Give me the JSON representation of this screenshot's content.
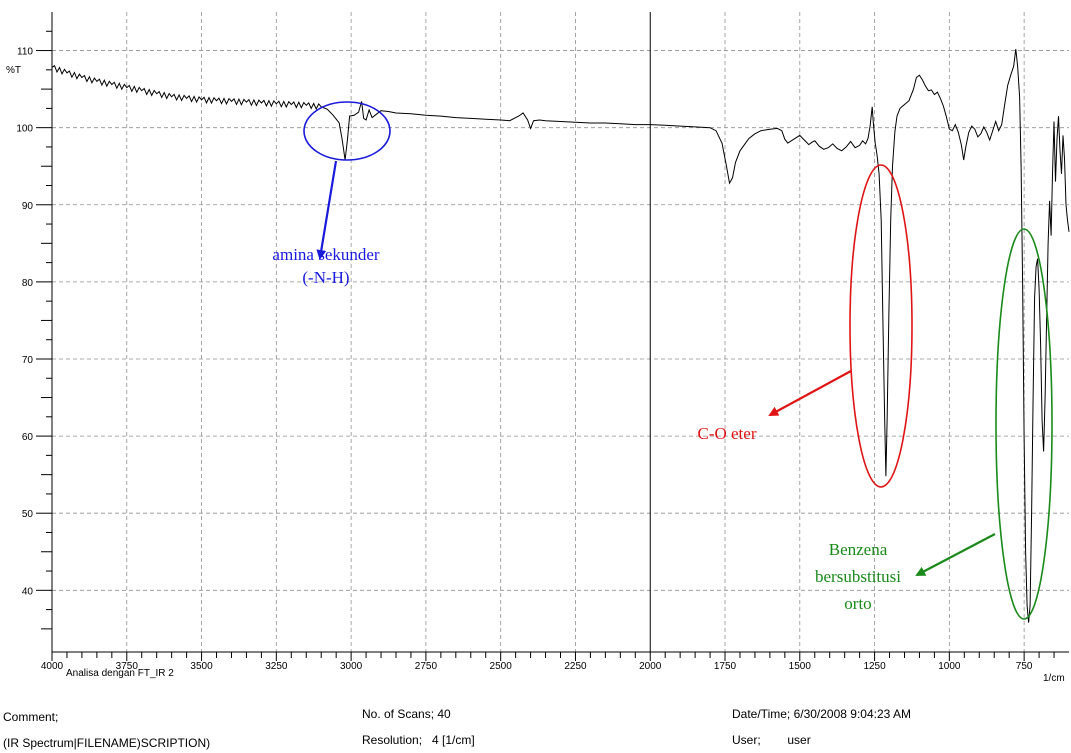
{
  "chart_data": {
    "type": "line",
    "ylabel": "%T",
    "xunit": "1/cm",
    "xlim": [
      4000,
      600
    ],
    "ylim": [
      32,
      115
    ],
    "x_ticks": [
      4000,
      3750,
      3500,
      3250,
      3000,
      2750,
      2500,
      2250,
      2000,
      1750,
      1500,
      1250,
      1000,
      750
    ],
    "y_ticks": [
      40,
      50,
      60,
      70,
      80,
      90,
      100,
      110
    ],
    "grid": true,
    "series": [
      {
        "color": "#000000",
        "points": [
          [
            4000,
            107.8
          ],
          [
            3950,
            107.1
          ],
          [
            3900,
            106.5
          ],
          [
            3850,
            106.0
          ],
          [
            3800,
            105.6
          ],
          [
            3750,
            105.2
          ],
          [
            3700,
            104.8
          ],
          [
            3650,
            104.4
          ],
          [
            3600,
            104.0
          ],
          [
            3550,
            103.8
          ],
          [
            3500,
            103.6
          ],
          [
            3450,
            103.5
          ],
          [
            3400,
            103.4
          ],
          [
            3350,
            103.3
          ],
          [
            3300,
            103.2
          ],
          [
            3250,
            103.1
          ],
          [
            3200,
            103.0
          ],
          [
            3150,
            102.9
          ],
          [
            3100,
            102.7
          ],
          [
            3080,
            102.4
          ],
          [
            3060,
            101.6
          ],
          [
            3040,
            100.6
          ],
          [
            3030,
            98.5
          ],
          [
            3020,
            95.8
          ],
          [
            3012,
            98.5
          ],
          [
            3005,
            101.5
          ],
          [
            2990,
            101.6
          ],
          [
            2975,
            102.0
          ],
          [
            2965,
            103.4
          ],
          [
            2958,
            101.2
          ],
          [
            2950,
            101.0
          ],
          [
            2940,
            102.3
          ],
          [
            2930,
            101.3
          ],
          [
            2920,
            101.6
          ],
          [
            2900,
            102.2
          ],
          [
            2875,
            102.1
          ],
          [
            2850,
            101.9
          ],
          [
            2800,
            101.8
          ],
          [
            2750,
            101.6
          ],
          [
            2700,
            101.5
          ],
          [
            2650,
            101.3
          ],
          [
            2600,
            101.2
          ],
          [
            2550,
            101.1
          ],
          [
            2500,
            101.0
          ],
          [
            2470,
            100.9
          ],
          [
            2440,
            101.5
          ],
          [
            2425,
            101.9
          ],
          [
            2410,
            101.0
          ],
          [
            2400,
            99.9
          ],
          [
            2390,
            100.9
          ],
          [
            2370,
            101.0
          ],
          [
            2350,
            100.9
          ],
          [
            2300,
            100.8
          ],
          [
            2250,
            100.7
          ],
          [
            2200,
            100.6
          ],
          [
            2150,
            100.6
          ],
          [
            2100,
            100.5
          ],
          [
            2050,
            100.4
          ],
          [
            2000,
            100.4
          ],
          [
            1950,
            100.3
          ],
          [
            1900,
            100.2
          ],
          [
            1850,
            100.1
          ],
          [
            1800,
            100.0
          ],
          [
            1780,
            99.6
          ],
          [
            1760,
            98.0
          ],
          [
            1745,
            95.0
          ],
          [
            1735,
            92.8
          ],
          [
            1725,
            93.5
          ],
          [
            1715,
            95.5
          ],
          [
            1700,
            97.0
          ],
          [
            1685,
            97.8
          ],
          [
            1670,
            98.6
          ],
          [
            1650,
            99.2
          ],
          [
            1630,
            99.6
          ],
          [
            1600,
            99.8
          ],
          [
            1575,
            99.9
          ],
          [
            1560,
            99.6
          ],
          [
            1550,
            98.5
          ],
          [
            1540,
            98.0
          ],
          [
            1520,
            98.5
          ],
          [
            1500,
            99.0
          ],
          [
            1490,
            98.6
          ],
          [
            1480,
            98.2
          ],
          [
            1470,
            97.8
          ],
          [
            1460,
            98.1
          ],
          [
            1450,
            98.3
          ],
          [
            1435,
            97.6
          ],
          [
            1420,
            97.2
          ],
          [
            1405,
            97.4
          ],
          [
            1390,
            97.9
          ],
          [
            1375,
            97.3
          ],
          [
            1360,
            97.0
          ],
          [
            1345,
            97.5
          ],
          [
            1330,
            98.2
          ],
          [
            1315,
            97.4
          ],
          [
            1300,
            97.7
          ],
          [
            1290,
            98.3
          ],
          [
            1280,
            97.9
          ],
          [
            1272,
            98.6
          ],
          [
            1265,
            100.2
          ],
          [
            1258,
            102.7
          ],
          [
            1254,
            100.5
          ],
          [
            1248,
            98.0
          ],
          [
            1242,
            96.5
          ],
          [
            1235,
            94.0
          ],
          [
            1228,
            88.0
          ],
          [
            1222,
            75.0
          ],
          [
            1216,
            62.0
          ],
          [
            1212,
            54.8
          ],
          [
            1208,
            62.0
          ],
          [
            1202,
            76.0
          ],
          [
            1196,
            88.0
          ],
          [
            1190,
            95.0
          ],
          [
            1182,
            99.5
          ],
          [
            1175,
            101.5
          ],
          [
            1165,
            102.5
          ],
          [
            1150,
            103.0
          ],
          [
            1135,
            103.5
          ],
          [
            1120,
            105.0
          ],
          [
            1110,
            106.5
          ],
          [
            1100,
            106.8
          ],
          [
            1090,
            106.2
          ],
          [
            1080,
            105.4
          ],
          [
            1070,
            104.8
          ],
          [
            1060,
            104.9
          ],
          [
            1050,
            104.3
          ],
          [
            1040,
            104.6
          ],
          [
            1030,
            103.8
          ],
          [
            1020,
            102.8
          ],
          [
            1010,
            101.4
          ],
          [
            1000,
            99.8
          ],
          [
            990,
            99.6
          ],
          [
            980,
            100.4
          ],
          [
            970,
            99.4
          ],
          [
            960,
            97.8
          ],
          [
            952,
            95.8
          ],
          [
            945,
            97.5
          ],
          [
            935,
            99.4
          ],
          [
            925,
            100.2
          ],
          [
            915,
            99.8
          ],
          [
            905,
            98.8
          ],
          [
            895,
            99.2
          ],
          [
            885,
            100.1
          ],
          [
            875,
            99.4
          ],
          [
            865,
            98.4
          ],
          [
            855,
            99.6
          ],
          [
            845,
            100.8
          ],
          [
            835,
            99.6
          ],
          [
            825,
            100.4
          ],
          [
            815,
            103.0
          ],
          [
            805,
            105.5
          ],
          [
            795,
            106.8
          ],
          [
            785,
            108.0
          ],
          [
            778,
            110.2
          ],
          [
            772,
            108.0
          ],
          [
            765,
            104.0
          ],
          [
            760,
            95.0
          ],
          [
            755,
            80.0
          ],
          [
            750,
            60.0
          ],
          [
            745,
            45.0
          ],
          [
            740,
            38.0
          ],
          [
            735,
            35.8
          ],
          [
            730,
            38.0
          ],
          [
            725,
            50.0
          ],
          [
            720,
            65.0
          ],
          [
            715,
            78.0
          ],
          [
            710,
            82.0
          ],
          [
            705,
            83.0
          ],
          [
            700,
            79.0
          ],
          [
            695,
            72.0
          ],
          [
            690,
            62.0
          ],
          [
            685,
            58.0
          ],
          [
            680,
            65.0
          ],
          [
            675,
            75.0
          ],
          [
            670,
            85.0
          ],
          [
            665,
            90.5
          ],
          [
            660,
            86.0
          ],
          [
            655,
            94.0
          ],
          [
            650,
            100.8
          ],
          [
            645,
            93.0
          ],
          [
            640,
            98.5
          ],
          [
            635,
            101.5
          ],
          [
            630,
            97.0
          ],
          [
            625,
            94.0
          ],
          [
            620,
            99.0
          ],
          [
            615,
            96.0
          ],
          [
            610,
            90.0
          ],
          [
            605,
            88.0
          ],
          [
            600,
            86.5
          ]
        ]
      }
    ]
  },
  "footer": {
    "instrument_note": "Analisa dengan FT_IR 2",
    "comment_label": "Comment;",
    "comment_value": "(IR Spectrum|FILENAME)SCRIPTION)",
    "scans": "No. of Scans; 40",
    "resolution": "Resolution;   4 [1/cm]",
    "datetime": "Date/Time; 6/30/2008 9:04:23 AM",
    "user": "User;        user"
  },
  "annotations": [
    {
      "id": "nh",
      "color": "#1a1adc",
      "lines": [
        "amina sekunder",
        "(-N-H)"
      ]
    },
    {
      "id": "co",
      "color": "#e01414",
      "lines": [
        "C-O eter"
      ]
    },
    {
      "id": "benz",
      "color": "#1a8a1a",
      "lines": [
        "Benzena",
        "bersubstitusi",
        "orto"
      ]
    }
  ]
}
